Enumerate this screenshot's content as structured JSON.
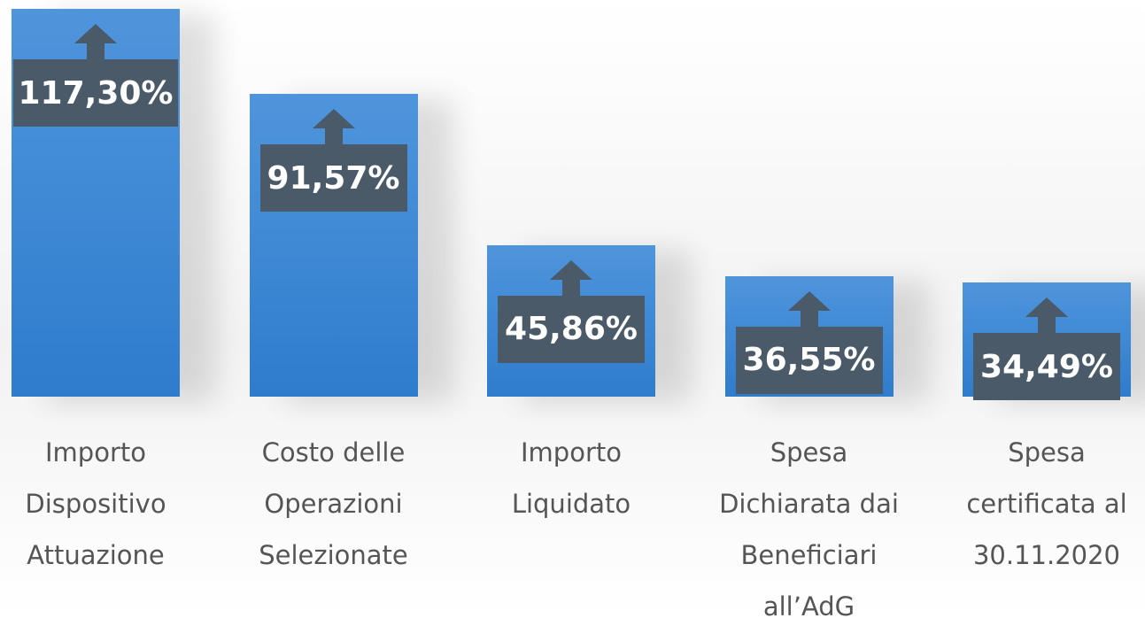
{
  "chart_data": {
    "type": "bar",
    "categories": [
      "Importo\nDispositivo\nAttuazione",
      "Costo delle\nOperazioni\nSelezionate",
      "Importo\nLiquidato",
      "Spesa\nDichiarata dai\nBeneficiari\nall’AdG",
      "Spesa\ncertificata al\n30.11.2020"
    ],
    "values": [
      117.3,
      91.57,
      45.86,
      36.55,
      34.49
    ],
    "value_labels": [
      "117,30%",
      "91,57%",
      "45,86%",
      "36,55%",
      "34,49%"
    ],
    "color": "#3a86d4"
  }
}
